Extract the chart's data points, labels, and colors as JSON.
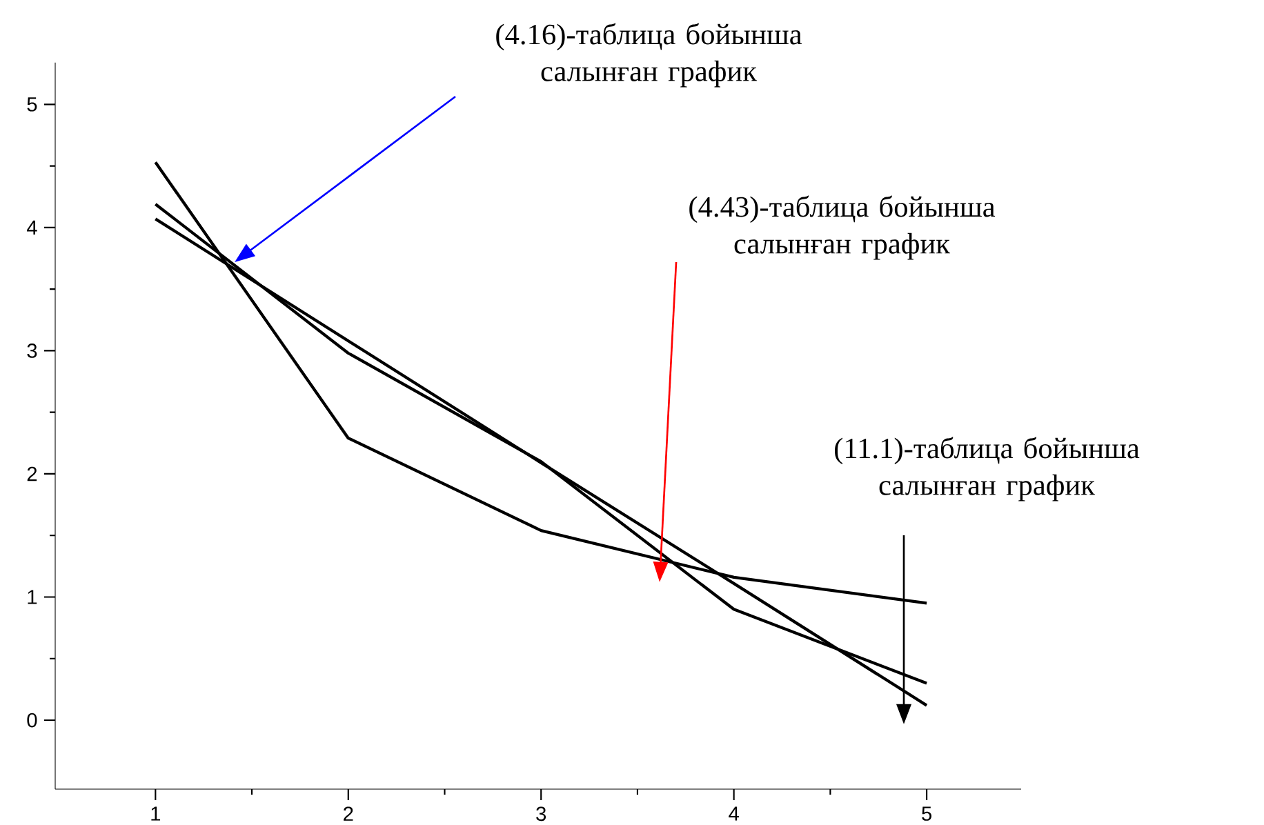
{
  "chart_data": {
    "type": "line",
    "xlim": [
      0.48,
      5.49
    ],
    "ylim": [
      -0.56,
      5.34
    ],
    "xticks": [
      1,
      2,
      3,
      4,
      5
    ],
    "yticks": [
      0,
      1,
      2,
      3,
      4,
      5
    ],
    "x": [
      1,
      2,
      3,
      4,
      5
    ],
    "series": [
      {
        "color": "#000000",
        "values": [
          4.53,
          2.29,
          1.54,
          1.16,
          0.95
        ]
      },
      {
        "color": "#000000",
        "values": [
          4.19,
          2.98,
          2.1,
          0.9,
          0.3
        ]
      },
      {
        "color": "#000000",
        "values": [
          4.07,
          3.08,
          2.09,
          1.11,
          0.12
        ]
      }
    ],
    "marker": "none",
    "line_style": "solid",
    "grid": false,
    "annotations": [
      "(4.16)-таблица бойынша салынған график",
      "(4.43)-таблица бойынша салынған график",
      "(11.1)-таблица бойынша салынған график"
    ]
  }
}
